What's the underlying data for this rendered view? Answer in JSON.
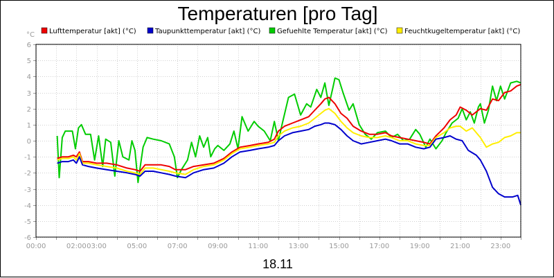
{
  "chart_data": {
    "type": "line",
    "title": "Temperaturen [pro Tag]",
    "ylabel": "°C",
    "xlabel": "18.11",
    "ylim": [
      -6,
      6
    ],
    "xlim": [
      0,
      24
    ],
    "yticks": [
      "-6",
      "-5",
      "-4",
      "-3",
      "-2",
      "-1",
      "0",
      "1",
      "2",
      "3",
      "4",
      "5",
      "6"
    ],
    "xticks": [
      {
        "hour": 0,
        "label": "00:00"
      },
      {
        "hour": 2,
        "label": "02:00"
      },
      {
        "hour": 3,
        "label": "03:00"
      },
      {
        "hour": 5,
        "label": "05:00"
      },
      {
        "hour": 7,
        "label": "07:00"
      },
      {
        "hour": 9,
        "label": "09:00"
      },
      {
        "hour": 11,
        "label": "11:00"
      },
      {
        "hour": 13,
        "label": "13:00"
      },
      {
        "hour": 15,
        "label": "15:00"
      },
      {
        "hour": 17,
        "label": "17:00"
      },
      {
        "hour": 19,
        "label": "19:00"
      },
      {
        "hour": 21,
        "label": "21:00"
      },
      {
        "hour": 23,
        "label": "23:00"
      }
    ],
    "grid": true,
    "legend_position": "top",
    "series": [
      {
        "name": "Lufttemperatur [akt] (°C)",
        "color": "#ee0000",
        "points": [
          [
            1.05,
            -1.1
          ],
          [
            1.3,
            -1.0
          ],
          [
            1.6,
            -1.0
          ],
          [
            1.85,
            -0.9
          ],
          [
            2.0,
            -1.0
          ],
          [
            2.15,
            -0.7
          ],
          [
            2.3,
            -1.3
          ],
          [
            2.6,
            -1.3
          ],
          [
            3.0,
            -1.4
          ],
          [
            3.5,
            -1.4
          ],
          [
            4.0,
            -1.5
          ],
          [
            4.5,
            -1.7
          ],
          [
            4.9,
            -1.8
          ],
          [
            5.15,
            -1.9
          ],
          [
            5.4,
            -1.5
          ],
          [
            5.8,
            -1.5
          ],
          [
            6.2,
            -1.5
          ],
          [
            6.6,
            -1.6
          ],
          [
            6.9,
            -1.8
          ],
          [
            7.4,
            -1.8
          ],
          [
            7.8,
            -1.6
          ],
          [
            8.3,
            -1.5
          ],
          [
            8.8,
            -1.4
          ],
          [
            9.3,
            -1.1
          ],
          [
            9.7,
            -0.7
          ],
          [
            10.1,
            -0.4
          ],
          [
            10.6,
            -0.3
          ],
          [
            11.0,
            -0.2
          ],
          [
            11.5,
            -0.1
          ],
          [
            11.8,
            0.1
          ],
          [
            12.0,
            0.6
          ],
          [
            12.3,
            0.9
          ],
          [
            12.7,
            1.1
          ],
          [
            13.1,
            1.3
          ],
          [
            13.5,
            1.5
          ],
          [
            13.8,
            1.9
          ],
          [
            14.1,
            2.3
          ],
          [
            14.3,
            2.6
          ],
          [
            14.5,
            2.7
          ],
          [
            14.8,
            2.3
          ],
          [
            15.1,
            1.7
          ],
          [
            15.4,
            1.4
          ],
          [
            15.7,
            0.9
          ],
          [
            16.1,
            0.6
          ],
          [
            16.5,
            0.4
          ],
          [
            16.9,
            0.4
          ],
          [
            17.3,
            0.5
          ],
          [
            17.6,
            0.3
          ],
          [
            18.0,
            0.2
          ],
          [
            18.4,
            0.1
          ],
          [
            18.8,
            0.0
          ],
          [
            19.2,
            -0.1
          ],
          [
            19.5,
            -0.2
          ],
          [
            19.8,
            0.3
          ],
          [
            20.2,
            0.8
          ],
          [
            20.5,
            1.3
          ],
          [
            20.8,
            1.6
          ],
          [
            21.0,
            2.1
          ],
          [
            21.3,
            1.9
          ],
          [
            21.6,
            1.6
          ],
          [
            22.0,
            2.0
          ],
          [
            22.3,
            1.9
          ],
          [
            22.6,
            2.6
          ],
          [
            22.9,
            2.5
          ],
          [
            23.2,
            3.0
          ],
          [
            23.5,
            3.1
          ],
          [
            23.8,
            3.4
          ],
          [
            24.0,
            3.5
          ]
        ]
      },
      {
        "name": "Taupunkttemperatur [akt] (°C)",
        "color": "#0000cc",
        "points": [
          [
            1.05,
            -1.4
          ],
          [
            1.3,
            -1.3
          ],
          [
            1.6,
            -1.3
          ],
          [
            1.85,
            -1.2
          ],
          [
            2.0,
            -1.4
          ],
          [
            2.15,
            -1.0
          ],
          [
            2.3,
            -1.5
          ],
          [
            2.6,
            -1.6
          ],
          [
            3.0,
            -1.7
          ],
          [
            3.5,
            -1.8
          ],
          [
            4.0,
            -1.9
          ],
          [
            4.5,
            -2.0
          ],
          [
            4.9,
            -2.1
          ],
          [
            5.15,
            -2.2
          ],
          [
            5.4,
            -1.9
          ],
          [
            5.8,
            -1.9
          ],
          [
            6.2,
            -2.0
          ],
          [
            6.6,
            -2.1
          ],
          [
            6.9,
            -2.2
          ],
          [
            7.4,
            -2.3
          ],
          [
            7.8,
            -2.0
          ],
          [
            8.3,
            -1.8
          ],
          [
            8.8,
            -1.7
          ],
          [
            9.3,
            -1.4
          ],
          [
            9.7,
            -1.0
          ],
          [
            10.1,
            -0.7
          ],
          [
            10.6,
            -0.6
          ],
          [
            11.0,
            -0.5
          ],
          [
            11.5,
            -0.4
          ],
          [
            11.8,
            -0.3
          ],
          [
            12.0,
            0.0
          ],
          [
            12.3,
            0.3
          ],
          [
            12.7,
            0.5
          ],
          [
            13.1,
            0.6
          ],
          [
            13.5,
            0.7
          ],
          [
            13.8,
            0.9
          ],
          [
            14.1,
            1.0
          ],
          [
            14.3,
            1.1
          ],
          [
            14.5,
            1.1
          ],
          [
            14.8,
            1.0
          ],
          [
            15.1,
            0.7
          ],
          [
            15.4,
            0.3
          ],
          [
            15.7,
            0.0
          ],
          [
            16.1,
            -0.2
          ],
          [
            16.5,
            -0.1
          ],
          [
            16.9,
            0.0
          ],
          [
            17.3,
            0.1
          ],
          [
            17.6,
            0.0
          ],
          [
            18.0,
            -0.2
          ],
          [
            18.4,
            -0.2
          ],
          [
            18.8,
            -0.4
          ],
          [
            19.2,
            -0.5
          ],
          [
            19.5,
            -0.4
          ],
          [
            19.8,
            0.1
          ],
          [
            20.2,
            0.2
          ],
          [
            20.5,
            0.3
          ],
          [
            20.8,
            0.1
          ],
          [
            21.1,
            0.0
          ],
          [
            21.4,
            -0.6
          ],
          [
            21.8,
            -0.9
          ],
          [
            22.0,
            -1.2
          ],
          [
            22.3,
            -1.9
          ],
          [
            22.6,
            -2.9
          ],
          [
            22.9,
            -3.3
          ],
          [
            23.2,
            -3.5
          ],
          [
            23.6,
            -3.5
          ],
          [
            23.85,
            -3.4
          ],
          [
            24.0,
            -4.0
          ]
        ]
      },
      {
        "name": "Gefuehlte Temperatur [akt] (°C)",
        "color": "#00cc00",
        "points": [
          [
            1.05,
            0.3
          ],
          [
            1.15,
            -2.3
          ],
          [
            1.3,
            0.2
          ],
          [
            1.45,
            0.6
          ],
          [
            1.8,
            0.6
          ],
          [
            1.95,
            -0.5
          ],
          [
            2.1,
            0.8
          ],
          [
            2.25,
            1.0
          ],
          [
            2.45,
            0.4
          ],
          [
            2.7,
            0.4
          ],
          [
            2.9,
            -1.2
          ],
          [
            3.1,
            0.3
          ],
          [
            3.3,
            -1.6
          ],
          [
            3.45,
            0.1
          ],
          [
            3.7,
            -0.1
          ],
          [
            3.9,
            -2.2
          ],
          [
            4.1,
            0.0
          ],
          [
            4.3,
            -1.0
          ],
          [
            4.6,
            -1.2
          ],
          [
            4.75,
            0.0
          ],
          [
            4.9,
            -0.6
          ],
          [
            5.05,
            -2.6
          ],
          [
            5.3,
            -0.4
          ],
          [
            5.5,
            0.2
          ],
          [
            5.8,
            0.1
          ],
          [
            6.2,
            0.0
          ],
          [
            6.6,
            -0.2
          ],
          [
            6.85,
            -1.0
          ],
          [
            7.0,
            -2.3
          ],
          [
            7.2,
            -1.8
          ],
          [
            7.5,
            -1.2
          ],
          [
            7.7,
            -0.1
          ],
          [
            7.9,
            -1.0
          ],
          [
            8.1,
            0.3
          ],
          [
            8.3,
            -0.4
          ],
          [
            8.5,
            0.2
          ],
          [
            8.65,
            -1.0
          ],
          [
            8.85,
            -0.5
          ],
          [
            9.0,
            -0.3
          ],
          [
            9.3,
            -0.6
          ],
          [
            9.6,
            -0.2
          ],
          [
            9.8,
            0.6
          ],
          [
            10.0,
            -0.5
          ],
          [
            10.2,
            1.5
          ],
          [
            10.5,
            0.6
          ],
          [
            10.8,
            1.2
          ],
          [
            11.0,
            0.9
          ],
          [
            11.3,
            0.6
          ],
          [
            11.6,
            0.0
          ],
          [
            11.8,
            1.2
          ],
          [
            12.0,
            0.0
          ],
          [
            12.2,
            1.1
          ],
          [
            12.5,
            2.7
          ],
          [
            12.8,
            2.9
          ],
          [
            13.1,
            1.6
          ],
          [
            13.4,
            2.3
          ],
          [
            13.6,
            2.1
          ],
          [
            13.9,
            3.2
          ],
          [
            14.1,
            2.7
          ],
          [
            14.3,
            3.6
          ],
          [
            14.5,
            2.2
          ],
          [
            14.7,
            3.3
          ],
          [
            14.8,
            3.9
          ],
          [
            15.0,
            3.8
          ],
          [
            15.2,
            3.0
          ],
          [
            15.5,
            1.9
          ],
          [
            15.7,
            2.3
          ],
          [
            16.0,
            1.0
          ],
          [
            16.3,
            0.4
          ],
          [
            16.6,
            0.1
          ],
          [
            16.9,
            0.5
          ],
          [
            17.3,
            0.6
          ],
          [
            17.6,
            0.2
          ],
          [
            17.9,
            0.4
          ],
          [
            18.2,
            0.0
          ],
          [
            18.5,
            0.1
          ],
          [
            18.8,
            0.7
          ],
          [
            19.0,
            0.4
          ],
          [
            19.3,
            -0.4
          ],
          [
            19.5,
            0.1
          ],
          [
            19.8,
            -0.5
          ],
          [
            20.1,
            0.0
          ],
          [
            20.3,
            0.5
          ],
          [
            20.6,
            1.1
          ],
          [
            20.9,
            1.4
          ],
          [
            21.1,
            2.0
          ],
          [
            21.3,
            1.3
          ],
          [
            21.5,
            1.8
          ],
          [
            21.7,
            1.1
          ],
          [
            21.9,
            2.1
          ],
          [
            22.0,
            2.3
          ],
          [
            22.2,
            1.1
          ],
          [
            22.4,
            1.9
          ],
          [
            22.6,
            3.4
          ],
          [
            22.8,
            2.5
          ],
          [
            23.0,
            3.4
          ],
          [
            23.2,
            2.6
          ],
          [
            23.5,
            3.6
          ],
          [
            23.8,
            3.7
          ],
          [
            24.0,
            3.6
          ]
        ]
      },
      {
        "name": "Feuchtkugeltemperatur [akt] (°C)",
        "color": "#ffee00",
        "points": [
          [
            1.05,
            -1.2
          ],
          [
            1.3,
            -1.1
          ],
          [
            1.6,
            -1.1
          ],
          [
            1.85,
            -1.0
          ],
          [
            2.0,
            -1.2
          ],
          [
            2.15,
            -0.8
          ],
          [
            2.3,
            -1.4
          ],
          [
            2.6,
            -1.4
          ],
          [
            3.0,
            -1.5
          ],
          [
            3.5,
            -1.6
          ],
          [
            4.0,
            -1.7
          ],
          [
            4.5,
            -1.9
          ],
          [
            4.9,
            -2.0
          ],
          [
            5.15,
            -2.1
          ],
          [
            5.4,
            -1.7
          ],
          [
            5.8,
            -1.7
          ],
          [
            6.2,
            -1.8
          ],
          [
            6.6,
            -1.9
          ],
          [
            6.9,
            -2.0
          ],
          [
            7.4,
            -2.1
          ],
          [
            7.8,
            -1.8
          ],
          [
            8.3,
            -1.6
          ],
          [
            8.8,
            -1.5
          ],
          [
            9.3,
            -1.2
          ],
          [
            9.7,
            -0.8
          ],
          [
            10.1,
            -0.5
          ],
          [
            10.6,
            -0.4
          ],
          [
            11.0,
            -0.3
          ],
          [
            11.5,
            -0.2
          ],
          [
            11.8,
            -0.1
          ],
          [
            12.0,
            0.3
          ],
          [
            12.3,
            0.6
          ],
          [
            12.7,
            0.8
          ],
          [
            13.1,
            0.9
          ],
          [
            13.5,
            1.1
          ],
          [
            13.8,
            1.4
          ],
          [
            14.1,
            1.7
          ],
          [
            14.3,
            1.9
          ],
          [
            14.5,
            2.0
          ],
          [
            14.8,
            1.7
          ],
          [
            15.1,
            1.2
          ],
          [
            15.4,
            0.8
          ],
          [
            15.7,
            0.5
          ],
          [
            16.1,
            0.3
          ],
          [
            16.5,
            0.2
          ],
          [
            16.9,
            0.2
          ],
          [
            17.3,
            0.3
          ],
          [
            17.6,
            0.2
          ],
          [
            18.0,
            0.0
          ],
          [
            18.4,
            0.0
          ],
          [
            18.8,
            -0.2
          ],
          [
            19.2,
            -0.3
          ],
          [
            19.5,
            -0.3
          ],
          [
            19.8,
            0.2
          ],
          [
            20.2,
            0.5
          ],
          [
            20.5,
            0.8
          ],
          [
            20.8,
            0.9
          ],
          [
            21.0,
            0.9
          ],
          [
            21.3,
            0.6
          ],
          [
            21.6,
            0.8
          ],
          [
            22.0,
            0.2
          ],
          [
            22.3,
            -0.4
          ],
          [
            22.6,
            -0.2
          ],
          [
            22.9,
            -0.1
          ],
          [
            23.2,
            0.2
          ],
          [
            23.5,
            0.3
          ],
          [
            23.8,
            0.5
          ],
          [
            24.0,
            0.5
          ]
        ]
      }
    ]
  }
}
